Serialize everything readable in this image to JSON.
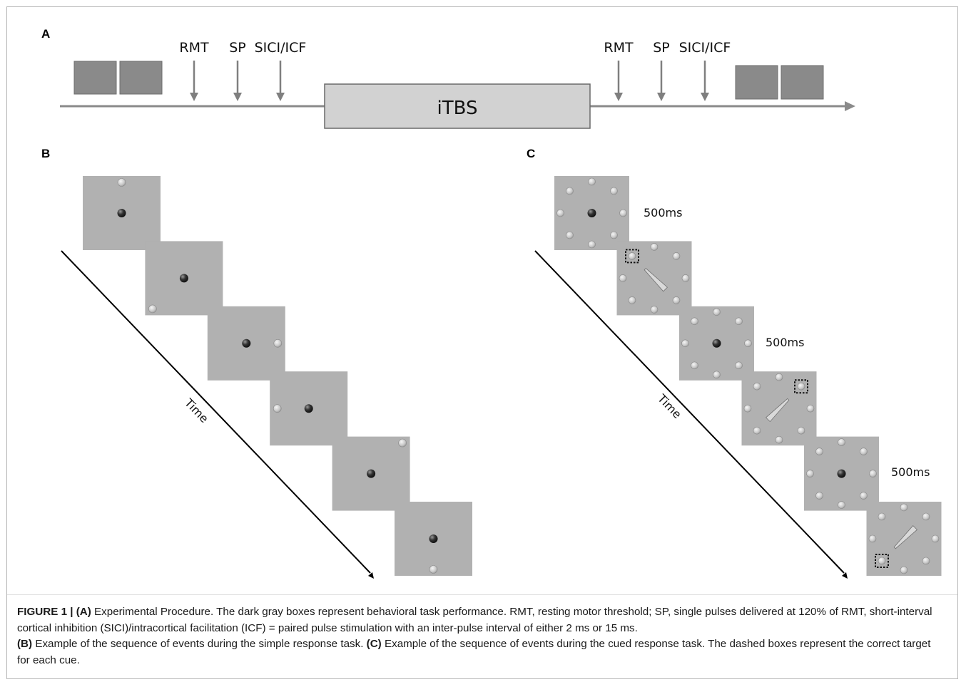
{
  "panels": {
    "a": {
      "letter": "A",
      "timeline": {
        "pre_labels": [
          "RMT",
          "SP",
          "SICI/ICF"
        ],
        "post_labels": [
          "RMT",
          "SP",
          "SICI/ICF"
        ],
        "intervention_label": "iTBS",
        "pre_task_boxes": 2,
        "post_task_boxes": 2
      }
    },
    "b": {
      "letter": "B",
      "time_label": "Time",
      "frames": [
        {
          "target": "top"
        },
        {
          "target": "bottom-left"
        },
        {
          "target": "right"
        },
        {
          "target": "left"
        },
        {
          "target": "top-right"
        },
        {
          "target": "bottom"
        }
      ]
    },
    "c": {
      "letter": "C",
      "time_label": "Time",
      "duration_labels": [
        "500ms",
        "500ms",
        "500ms"
      ],
      "frames": [
        {
          "kind": "fixation"
        },
        {
          "kind": "cue",
          "cue_direction": "bottom-right",
          "dashed_target": "top-left"
        },
        {
          "kind": "fixation"
        },
        {
          "kind": "cue",
          "cue_direction": "bottom-left",
          "dashed_target": "top-right"
        },
        {
          "kind": "fixation"
        },
        {
          "kind": "cue",
          "cue_direction": "top-right",
          "dashed_target": "bottom-left"
        }
      ]
    }
  },
  "colors": {
    "dark_box": "#8a8a8a",
    "light_box": "#d2d2d2",
    "frame_gray": "#b1b1b1",
    "arrow_gray": "#7f7f7f"
  },
  "caption": {
    "lead": "FIGURE 1 | ",
    "a_tag": "(A)",
    "a_text": " Experimental Procedure. The dark gray boxes represent behavioral task performance. RMT, resting motor threshold; SP, single pulses delivered at 120% of RMT, short-interval cortical inhibition (SICI)/intracortical facilitation (ICF) = paired pulse stimulation with an inter-pulse interval of either 2 ms or 15 ms.",
    "b_tag": "(B)",
    "b_text": " Example of the sequence of events during the simple response task. ",
    "c_tag": "(C)",
    "c_text": " Example of the sequence of events during the cued response task. The dashed boxes represent the correct target for each cue."
  }
}
